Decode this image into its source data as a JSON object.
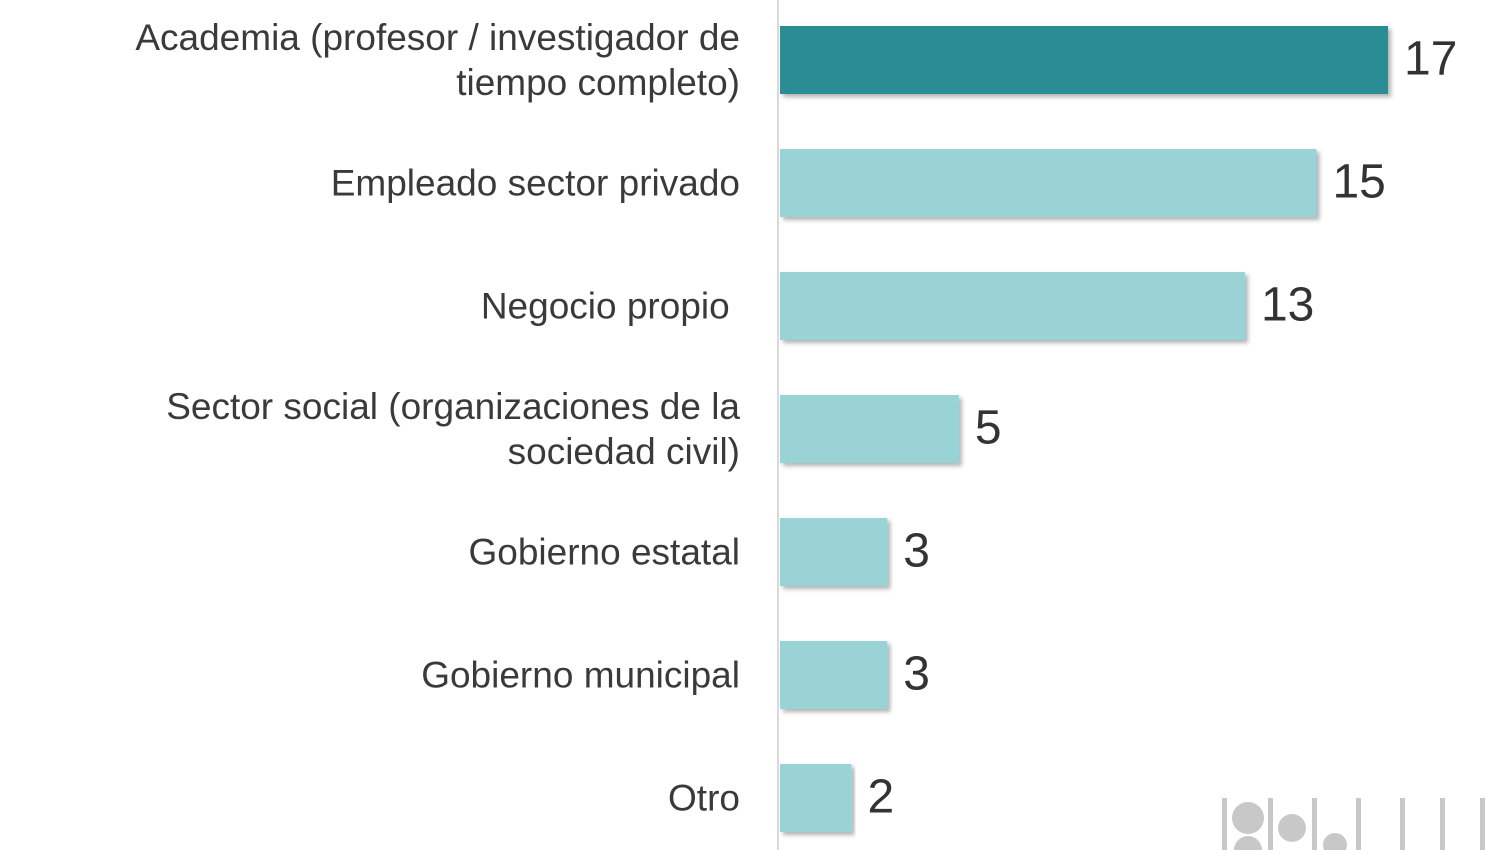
{
  "chart_data": {
    "type": "bar",
    "orientation": "horizontal",
    "categories": [
      "Academia (profesor / investigador de tiempo completo)",
      "Empleado sector privado",
      "Negocio propio ",
      "Sector social (organizaciones de la sociedad civil)",
      "Gobierno estatal",
      "Gobierno municipal",
      "Otro"
    ],
    "values": [
      17,
      15,
      13,
      5,
      3,
      3,
      2
    ],
    "colors": [
      "#2a8c94",
      "#99d3d6",
      "#99d3d6",
      "#99d3d6",
      "#99d3d6",
      "#99d3d6",
      "#99d3d6"
    ]
  }
}
